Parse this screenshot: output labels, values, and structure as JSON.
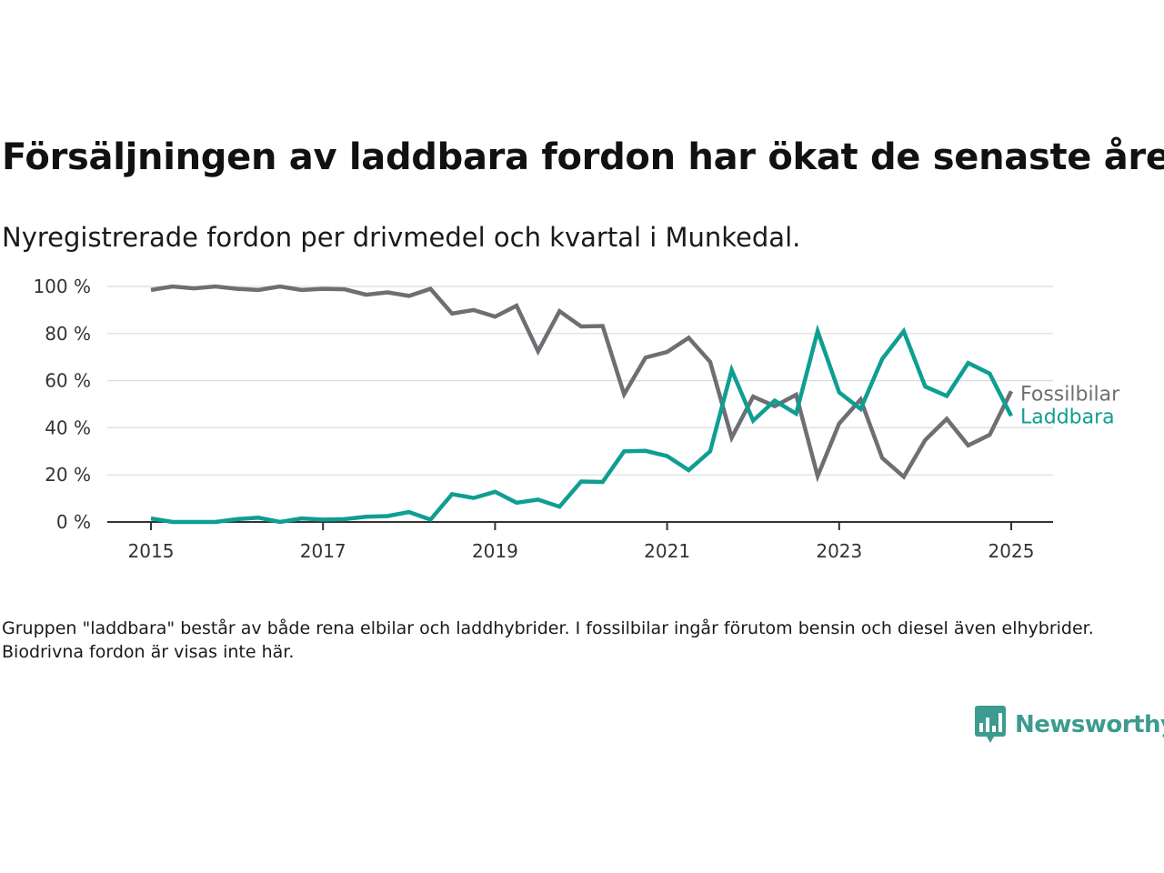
{
  "title": "Försäljningen av laddbara fordon har ökat de senaste åren",
  "subtitle": "Nyregistrerade fordon per drivmedel och kvartal i Munkedal.",
  "note": "Gruppen \"laddbara\" består av både rena elbilar och laddhybrider. I fossilbilar ingår förutom bensin och diesel även elhybrider. Biodrivna fordon är visas inte här.",
  "logo": {
    "text": "Newsworthy",
    "icon": "bar-chart-speech-icon",
    "color": "#3d9b8f"
  },
  "chart_data": {
    "type": "line",
    "x": [
      2015.0,
      2015.25,
      2015.5,
      2015.75,
      2016.0,
      2016.25,
      2016.5,
      2016.75,
      2017.0,
      2017.25,
      2017.5,
      2017.75,
      2018.0,
      2018.25,
      2018.5,
      2018.75,
      2019.0,
      2019.25,
      2019.5,
      2019.75,
      2020.0,
      2020.25,
      2020.5,
      2020.75,
      2021.0,
      2021.25,
      2021.5,
      2021.75,
      2022.0,
      2022.25,
      2022.5,
      2022.75,
      2023.0,
      2023.25,
      2023.5,
      2023.75,
      2024.0,
      2024.25,
      2024.5,
      2024.75,
      2025.0
    ],
    "series": [
      {
        "name": "Fossilbilar",
        "color": "#6e6e73",
        "values": [
          98.5,
          100,
          99.2,
          100,
          99,
          98.5,
          100,
          98.5,
          99,
          98.8,
          96.5,
          97.5,
          96,
          99,
          88.5,
          90,
          87.2,
          91.8,
          72.5,
          89.5,
          83,
          83.2,
          54.2,
          69.8,
          72.2,
          78.2,
          68,
          35.8,
          53.2,
          49.2,
          54,
          19.5,
          41.8,
          52,
          27.2,
          19.2,
          34.8,
          43.8,
          32.5,
          37,
          55.5
        ]
      },
      {
        "name": "Laddbara",
        "color": "#0f9e92",
        "values": [
          1.5,
          0,
          0,
          0,
          1.2,
          1.8,
          0,
          1.5,
          1,
          1.2,
          2.2,
          2.5,
          4.2,
          1,
          11.8,
          10.2,
          12.8,
          8.2,
          9.5,
          6.5,
          17.2,
          17,
          30,
          30.2,
          28,
          22,
          30,
          64.5,
          43,
          51.5,
          46,
          81,
          55,
          48,
          69.2,
          81,
          57.5,
          53.5,
          67.5,
          63,
          45
        ]
      }
    ],
    "xticks": [
      "2015",
      "2017",
      "2019",
      "2021",
      "2023",
      "2025"
    ],
    "yticks": [
      "0 %",
      "20 %",
      "40 %",
      "60 %",
      "80 %",
      "100 %"
    ],
    "xlim": [
      2015,
      2025
    ],
    "ylim": [
      0,
      100
    ],
    "grid": true,
    "legend": "direct labels at line ends (right)",
    "xlabel": "",
    "ylabel": ""
  }
}
